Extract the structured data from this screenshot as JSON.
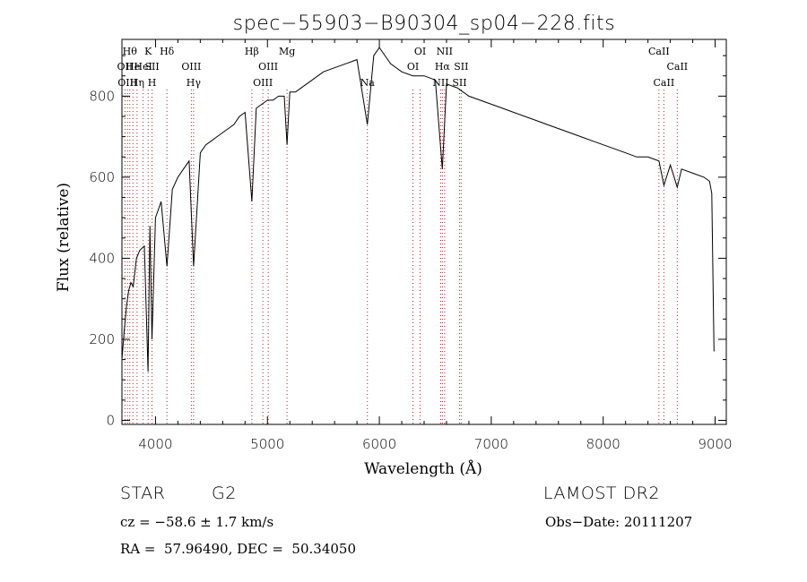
{
  "chart_data": {
    "type": "line",
    "title": "spec−55903−B90304_sp04−228.fits",
    "xlabel": "Wavelength (Å)",
    "ylabel": "Flux (relative)",
    "xlim": [
      3700,
      9100
    ],
    "ylim": [
      -10,
      940
    ],
    "x_ticks": [
      4000,
      5000,
      6000,
      7000,
      8000,
      9000
    ],
    "y_ticks": [
      0,
      200,
      400,
      600,
      800
    ],
    "grid": false,
    "line_color": "#000000",
    "marker_color": "#b22222",
    "series": [
      {
        "x": [
          3700,
          3720,
          3740,
          3760,
          3780,
          3800,
          3830,
          3860,
          3900,
          3933,
          3950,
          3968,
          4000,
          4050,
          4102,
          4150,
          4200,
          4250,
          4300,
          4340,
          4400,
          4450,
          4500,
          4550,
          4600,
          4650,
          4700,
          4750,
          4800,
          4861,
          4900,
          4950,
          5000,
          5050,
          5100,
          5150,
          5175,
          5200,
          5250,
          5300,
          5400,
          5500,
          5600,
          5700,
          5800,
          5893,
          5950,
          6000,
          6050,
          6100,
          6200,
          6300,
          6400,
          6500,
          6563,
          6600,
          6700,
          6800,
          6900,
          7000,
          7100,
          7200,
          7300,
          7400,
          7500,
          7600,
          7700,
          7800,
          7900,
          8000,
          8100,
          8200,
          8300,
          8400,
          8498,
          8542,
          8600,
          8662,
          8700,
          8800,
          8900,
          8950,
          8970,
          8990
        ],
        "y": [
          150,
          220,
          280,
          320,
          340,
          330,
          400,
          420,
          430,
          120,
          480,
          200,
          500,
          540,
          380,
          570,
          600,
          620,
          640,
          380,
          660,
          680,
          690,
          700,
          710,
          720,
          730,
          750,
          760,
          540,
          770,
          780,
          790,
          790,
          800,
          800,
          680,
          810,
          810,
          820,
          840,
          860,
          870,
          880,
          890,
          730,
          900,
          920,
          900,
          880,
          860,
          850,
          850,
          840,
          620,
          830,
          820,
          800,
          790,
          780,
          770,
          760,
          750,
          740,
          730,
          720,
          710,
          700,
          690,
          680,
          670,
          660,
          650,
          650,
          640,
          580,
          630,
          575,
          620,
          610,
          600,
          590,
          560,
          170
        ]
      }
    ],
    "lines": [
      {
        "x": 3727,
        "labels": [
          "OII"
        ],
        "rows": [
          1
        ]
      },
      {
        "x": 3750,
        "labels": [
          "OIII"
        ],
        "rows": [
          2
        ]
      },
      {
        "x": 3770,
        "labels": [
          "Hθ"
        ],
        "rows": [
          0
        ]
      },
      {
        "x": 3798,
        "labels": [
          "He"
        ],
        "rows": [
          1
        ]
      },
      {
        "x": 3835,
        "labels": [
          "Hη"
        ],
        "rows": [
          2
        ]
      },
      {
        "x": 3889,
        "labels": [
          "HeI"
        ],
        "rows": [
          1
        ]
      },
      {
        "x": 3934,
        "labels": [
          "K"
        ],
        "rows": [
          0
        ]
      },
      {
        "x": 3969,
        "labels": [
          "H",
          "SII"
        ],
        "rows": [
          2,
          1
        ]
      },
      {
        "x": 4102,
        "labels": [
          "Hδ"
        ],
        "rows": [
          0
        ]
      },
      {
        "x": 4320,
        "labels": [
          "OIII"
        ],
        "rows": [
          1
        ]
      },
      {
        "x": 4340,
        "labels": [
          "Hγ"
        ],
        "rows": [
          2
        ]
      },
      {
        "x": 4861,
        "labels": [
          "Hβ"
        ],
        "rows": [
          0
        ]
      },
      {
        "x": 4959,
        "labels": [
          "OIII"
        ],
        "rows": [
          2
        ]
      },
      {
        "x": 5007,
        "labels": [
          "OIII"
        ],
        "rows": [
          1
        ]
      },
      {
        "x": 5175,
        "labels": [
          "Mg"
        ],
        "rows": [
          0
        ]
      },
      {
        "x": 5893,
        "labels": [
          "Na"
        ],
        "rows": [
          2
        ]
      },
      {
        "x": 6300,
        "labels": [
          "OI"
        ],
        "rows": [
          1
        ]
      },
      {
        "x": 6364,
        "labels": [
          "OI"
        ],
        "rows": [
          0
        ]
      },
      {
        "x": 6548,
        "labels": [
          "NII"
        ],
        "rows": [
          2
        ]
      },
      {
        "x": 6563,
        "labels": [
          "Hα"
        ],
        "rows": [
          1
        ]
      },
      {
        "x": 6583,
        "labels": [
          "NII"
        ],
        "rows": [
          0
        ]
      },
      {
        "x": 6716,
        "labels": [
          "SII"
        ],
        "rows": [
          2
        ]
      },
      {
        "x": 6731,
        "labels": [
          "SII"
        ],
        "rows": [
          1
        ]
      },
      {
        "x": 8498,
        "labels": [
          "CaII"
        ],
        "rows": [
          0
        ]
      },
      {
        "x": 8542,
        "labels": [
          "CaII"
        ],
        "rows": [
          2
        ]
      },
      {
        "x": 8662,
        "labels": [
          "CaII"
        ],
        "rows": [
          1
        ]
      }
    ]
  },
  "info": {
    "class": "STAR",
    "subclass": "G2",
    "cz": "cz = −58.6 ± 1.7 km/s",
    "coords": "RA =  57.96490, DEC =  50.34050",
    "release": "LAMOST DR2",
    "obs_date": "Obs−Date: 20111207"
  }
}
